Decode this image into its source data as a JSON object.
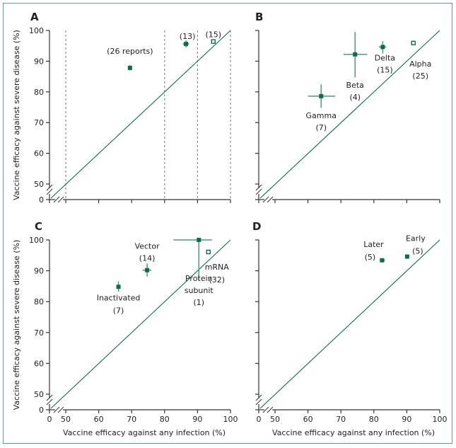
{
  "chart_data": [
    {
      "panel": "A",
      "type": "scatter",
      "xlabel": "",
      "ylabel": "Vaccine efficacy against severe disease (%)",
      "xlim": [
        50,
        100
      ],
      "ylim": [
        50,
        100
      ],
      "axis_break": true,
      "x_ticks": [],
      "y_ticks": [
        "0",
        "50",
        "60",
        "70",
        "80",
        "90",
        "100"
      ],
      "reference_line": "y = x",
      "vertical_dashed_lines_x": [
        50,
        80,
        90,
        100
      ],
      "points": [
        {
          "label": "(26 reports)",
          "x": 69.5,
          "y": 87.8,
          "xerr": [
            69,
            70
          ],
          "yerr": [
            87,
            88.7
          ],
          "marker": "filled"
        },
        {
          "label": "(13)",
          "x": 86.5,
          "y": 95.6,
          "xerr": [
            85.5,
            87.5
          ],
          "yerr": [
            94.5,
            96.8
          ],
          "marker": "filled"
        },
        {
          "label": "(15)",
          "x": 94.8,
          "y": 96.4,
          "marker": "open"
        }
      ]
    },
    {
      "panel": "B",
      "type": "scatter",
      "xlabel": "",
      "ylabel": "",
      "xlim": [
        50,
        100
      ],
      "ylim": [
        50,
        100
      ],
      "axis_break": true,
      "reference_line": "y = x",
      "points": [
        {
          "label": "Gamma",
          "n": "(7)",
          "x": 64.0,
          "y": 78.6,
          "xerr": [
            60,
            68.3
          ],
          "yerr": [
            74.8,
            82.4
          ],
          "marker": "filled"
        },
        {
          "label": "Beta",
          "n": "(4)",
          "x": 74.3,
          "y": 92.2,
          "xerr": [
            70.8,
            78
          ],
          "yerr": [
            84.7,
            99.5
          ],
          "marker": "filled"
        },
        {
          "label": "Delta",
          "n": "(15)",
          "x": 82.7,
          "y": 94.6,
          "xerr": [
            81.5,
            83.8
          ],
          "yerr": [
            92.5,
            96.5
          ],
          "marker": "filled"
        },
        {
          "label": "Alpha",
          "n": "(25)",
          "x": 92.0,
          "y": 95.9,
          "marker": "open"
        }
      ]
    },
    {
      "panel": "C",
      "type": "scatter",
      "xlabel": "Vaccine efficacy against any infection (%)",
      "ylabel": "Vaccine efficacy against severe disease (%)",
      "xlim": [
        50,
        100
      ],
      "ylim": [
        50,
        100
      ],
      "axis_break": true,
      "x_ticks": [
        "0",
        "50",
        "60",
        "70",
        "80",
        "90",
        "100"
      ],
      "y_ticks": [
        "0",
        "50",
        "60",
        "70",
        "80",
        "90",
        "100"
      ],
      "reference_line": "y = x",
      "points": [
        {
          "label": "Inactivated",
          "n": "(7)",
          "x": 66.0,
          "y": 84.8,
          "xerr": [
            65.6,
            66.4
          ],
          "yerr": [
            83.2,
            86.6
          ],
          "marker": "filled"
        },
        {
          "label": "Vector",
          "n": "(14)",
          "x": 74.7,
          "y": 90.2,
          "xerr": [
            73.3,
            76
          ],
          "yerr": [
            88.1,
            92.4
          ],
          "marker": "filled"
        },
        {
          "label": "Protein subunit",
          "n": "(1)",
          "x": 90.4,
          "y": 100.0,
          "xerr": [
            82.7,
            94.4
          ],
          "yerr": [
            86.9,
            100
          ],
          "marker": "filled"
        },
        {
          "label": "mRNA",
          "n": "(32)",
          "x": 93.3,
          "y": 96.1,
          "marker": "open"
        }
      ]
    },
    {
      "panel": "D",
      "type": "scatter",
      "xlabel": "Vaccine efficacy against any infection (%)",
      "ylabel": "",
      "xlim": [
        50,
        100
      ],
      "ylim": [
        50,
        100
      ],
      "axis_break": true,
      "x_ticks": [
        "0",
        "50",
        "60",
        "70",
        "80",
        "90",
        "100"
      ],
      "reference_line": "y = x",
      "points": [
        {
          "label": "Later",
          "n": "(5)",
          "x": 82.5,
          "y": 93.4,
          "xerr": [
            81.8,
            83.4
          ],
          "yerr": [
            93,
            93.8
          ],
          "marker": "filled"
        },
        {
          "label": "Early",
          "n": "(5)",
          "x": 90.1,
          "y": 94.6,
          "xerr": [
            89.7,
            90.5
          ],
          "yerr": [
            94.3,
            94.9
          ],
          "marker": "filled"
        }
      ]
    }
  ],
  "colors": {
    "accent": "#0f6b4c",
    "accent_light": "#4f9a7c",
    "frame": "#5b9e8a",
    "axis": "#333333",
    "dashed": "#777777"
  }
}
